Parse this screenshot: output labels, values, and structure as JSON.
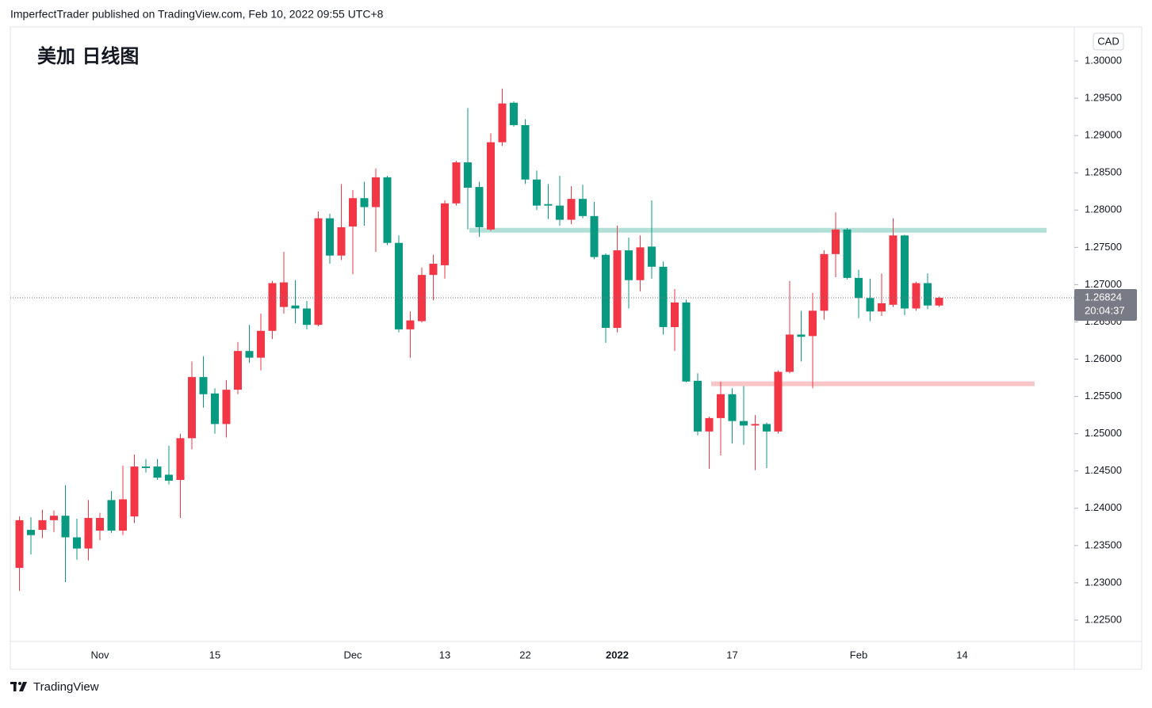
{
  "header": {
    "byline": "ImperfectTrader published on TradingView.com, Feb 10, 2022 09:55 UTC+8"
  },
  "chart_data": {
    "type": "candlestick",
    "title": "美加 日线图",
    "currency": "CAD",
    "categories": [
      null,
      null,
      null,
      null,
      null,
      null,
      null,
      "Nov",
      null,
      null,
      null,
      null,
      null,
      null,
      null,
      null,
      null,
      "15",
      null,
      null,
      null,
      null,
      null,
      null,
      null,
      null,
      null,
      null,
      null,
      "Dec",
      null,
      null,
      null,
      null,
      null,
      null,
      null,
      "13",
      null,
      null,
      null,
      null,
      null,
      null,
      "22",
      null,
      null,
      null,
      null,
      null,
      null,
      null,
      "2022",
      null,
      null,
      null,
      null,
      null,
      null,
      null,
      null,
      null,
      "17",
      null,
      null,
      null,
      null,
      null,
      null,
      null,
      null,
      null,
      null,
      "Feb",
      null,
      null,
      null,
      null,
      null,
      null,
      null,
      null,
      "14",
      null,
      null,
      null,
      null,
      null,
      null,
      null,
      null,
      null
    ],
    "open": [
      1.232,
      1.2371,
      1.2371,
      1.2384,
      1.239,
      1.2361,
      1.2346,
      1.237,
      1.2411,
      1.237,
      1.2389,
      1.2456,
      1.2456,
      1.2445,
      1.2438,
      1.2494,
      1.2576,
      1.2554,
      1.2513,
      1.2559,
      1.2611,
      1.2602,
      1.2638,
      1.267,
      1.2672,
      1.2668,
      1.2646,
      1.2789,
      1.2739,
      1.2778,
      1.2816,
      1.2804,
      1.2844,
      1.2756,
      1.264,
      1.2651,
      1.2713,
      1.2726,
      1.2809,
      1.2864,
      1.2831,
      1.2774,
      1.2891,
      1.2944,
      1.2914,
      1.2841,
      1.2808,
      1.2806,
      1.2787,
      1.2815,
      1.2792,
      1.274,
      1.2642,
      1.2746,
      1.2706,
      1.2751,
      1.2724,
      1.2643,
      1.2676,
      1.2571,
      1.2503,
      1.2521,
      1.2553,
      1.2517,
      1.2511,
      1.2513,
      1.2503,
      1.2583,
      1.2633,
      1.2631,
      1.2665,
      1.2741,
      1.2774,
      1.2709,
      1.2682,
      1.2664,
      1.2673,
      1.2766,
      1.2668,
      1.2702,
      1.2672,
      null,
      null,
      null,
      null,
      null,
      null,
      null,
      null,
      null,
      null,
      null
    ],
    "high": [
      1.2389,
      1.2388,
      1.2398,
      1.2397,
      1.2431,
      1.2386,
      1.2411,
      1.2394,
      1.2423,
      1.2457,
      1.2472,
      1.2466,
      1.2466,
      1.2484,
      1.25,
      1.2597,
      1.2604,
      1.2561,
      1.2572,
      1.2623,
      1.2646,
      1.2661,
      1.2705,
      1.2744,
      1.2706,
      1.2678,
      1.2798,
      1.2795,
      1.2835,
      1.2827,
      1.2838,
      1.2856,
      1.2846,
      1.2766,
      1.2664,
      1.2723,
      1.274,
      1.2813,
      1.2866,
      1.2937,
      1.2838,
      1.2903,
      1.2963,
      1.2946,
      1.2922,
      1.2853,
      1.2835,
      1.2846,
      1.2832,
      1.2834,
      1.2811,
      1.2742,
      1.2779,
      1.2763,
      1.2766,
      1.2813,
      1.2731,
      1.2694,
      1.268,
      1.2581,
      1.2523,
      1.257,
      1.2561,
      1.2564,
      1.2525,
      1.2515,
      1.2585,
      1.2705,
      1.2665,
      1.2689,
      1.2746,
      1.2797,
      1.2776,
      1.272,
      1.2708,
      1.2715,
      1.2789,
      1.2767,
      1.2704,
      1.2715,
      1.2684,
      null,
      null,
      null,
      null,
      null,
      null,
      null,
      null,
      null,
      null,
      null
    ],
    "low": [
      1.2289,
      1.2338,
      1.236,
      1.2368,
      1.2301,
      1.2331,
      1.233,
      1.2357,
      1.2367,
      1.2364,
      1.238,
      1.2448,
      1.2438,
      1.2432,
      1.2387,
      1.2479,
      1.2535,
      1.25,
      1.2495,
      1.2553,
      1.2595,
      1.2585,
      1.2627,
      1.2661,
      1.2648,
      1.264,
      1.2644,
      1.2728,
      1.2733,
      1.2714,
      1.2779,
      1.2744,
      1.2753,
      1.2636,
      1.2602,
      1.2649,
      1.2679,
      1.2708,
      1.2806,
      1.2774,
      1.2764,
      1.2772,
      1.2886,
      1.2912,
      1.2835,
      1.28,
      1.2788,
      1.2779,
      1.2781,
      1.2789,
      1.2734,
      1.2622,
      1.2636,
      1.2668,
      1.2691,
      1.2708,
      1.2633,
      1.2611,
      1.2569,
      1.2498,
      1.2453,
      1.2471,
      1.2487,
      1.2485,
      1.2451,
      1.2454,
      1.25,
      1.2581,
      1.2597,
      1.2561,
      1.2653,
      1.271,
      1.2707,
      1.2655,
      1.2651,
      1.2658,
      1.267,
      1.2659,
      1.2665,
      1.2667,
      1.267,
      null,
      null,
      null,
      null,
      null,
      null,
      null,
      null,
      null,
      null,
      null
    ],
    "close": [
      1.2384,
      1.2364,
      1.2384,
      1.239,
      1.2361,
      1.2346,
      1.2387,
      1.2387,
      1.237,
      1.2412,
      1.2456,
      1.2454,
      1.2441,
      1.2437,
      1.2494,
      1.2576,
      1.2553,
      1.2513,
      1.2559,
      1.2611,
      1.2602,
      1.2638,
      1.2702,
      1.2703,
      1.2668,
      1.2646,
      1.2789,
      1.2739,
      1.2777,
      1.2816,
      1.2804,
      1.2844,
      1.2756,
      1.264,
      1.2652,
      1.2713,
      1.2728,
      1.2809,
      1.2864,
      1.283,
      1.2777,
      1.2891,
      1.2943,
      1.2914,
      1.2841,
      1.2806,
      1.2806,
      1.2787,
      1.2815,
      1.2792,
      1.2737,
      1.2642,
      1.2746,
      1.2706,
      1.275,
      1.2724,
      1.2643,
      1.2676,
      1.257,
      1.2503,
      1.2521,
      1.2553,
      1.2517,
      1.2511,
      1.2513,
      1.2503,
      1.2583,
      1.2633,
      1.263,
      1.2665,
      1.2741,
      1.2774,
      1.2709,
      1.2682,
      1.2664,
      1.2675,
      1.2766,
      1.2668,
      1.2702,
      1.2672,
      1.26824,
      null,
      null,
      null,
      null,
      null,
      null,
      null,
      null,
      null,
      null,
      null
    ],
    "up_color": "#f23645",
    "down_color": "#089981",
    "ylim": [
      1.22213,
      1.30457
    ],
    "yticks": [
      {
        "value": 1.225,
        "label": "1.22500"
      },
      {
        "value": 1.23,
        "label": "1.23000"
      },
      {
        "value": 1.235,
        "label": "1.23500"
      },
      {
        "value": 1.24,
        "label": "1.24000"
      },
      {
        "value": 1.245,
        "label": "1.24500"
      },
      {
        "value": 1.25,
        "label": "1.25000"
      },
      {
        "value": 1.255,
        "label": "1.25500"
      },
      {
        "value": 1.26,
        "label": "1.26000"
      },
      {
        "value": 1.265,
        "label": "1.26500"
      },
      {
        "value": 1.27,
        "label": "1.27000"
      },
      {
        "value": 1.275,
        "label": "1.27500"
      },
      {
        "value": 1.28,
        "label": "1.28000"
      },
      {
        "value": 1.285,
        "label": "1.28500"
      },
      {
        "value": 1.29,
        "label": "1.29000"
      },
      {
        "value": 1.295,
        "label": "1.29500"
      },
      {
        "value": 1.3,
        "label": "1.30000"
      }
    ],
    "last_price": 1.26824,
    "countdown": "20:04:37",
    "levels": [
      {
        "value": 1.2773,
        "color": "#b3e0d6"
      },
      {
        "value": 1.2567,
        "color": "#f8c6c8"
      }
    ]
  },
  "footer": {
    "brand": "TradingView"
  }
}
